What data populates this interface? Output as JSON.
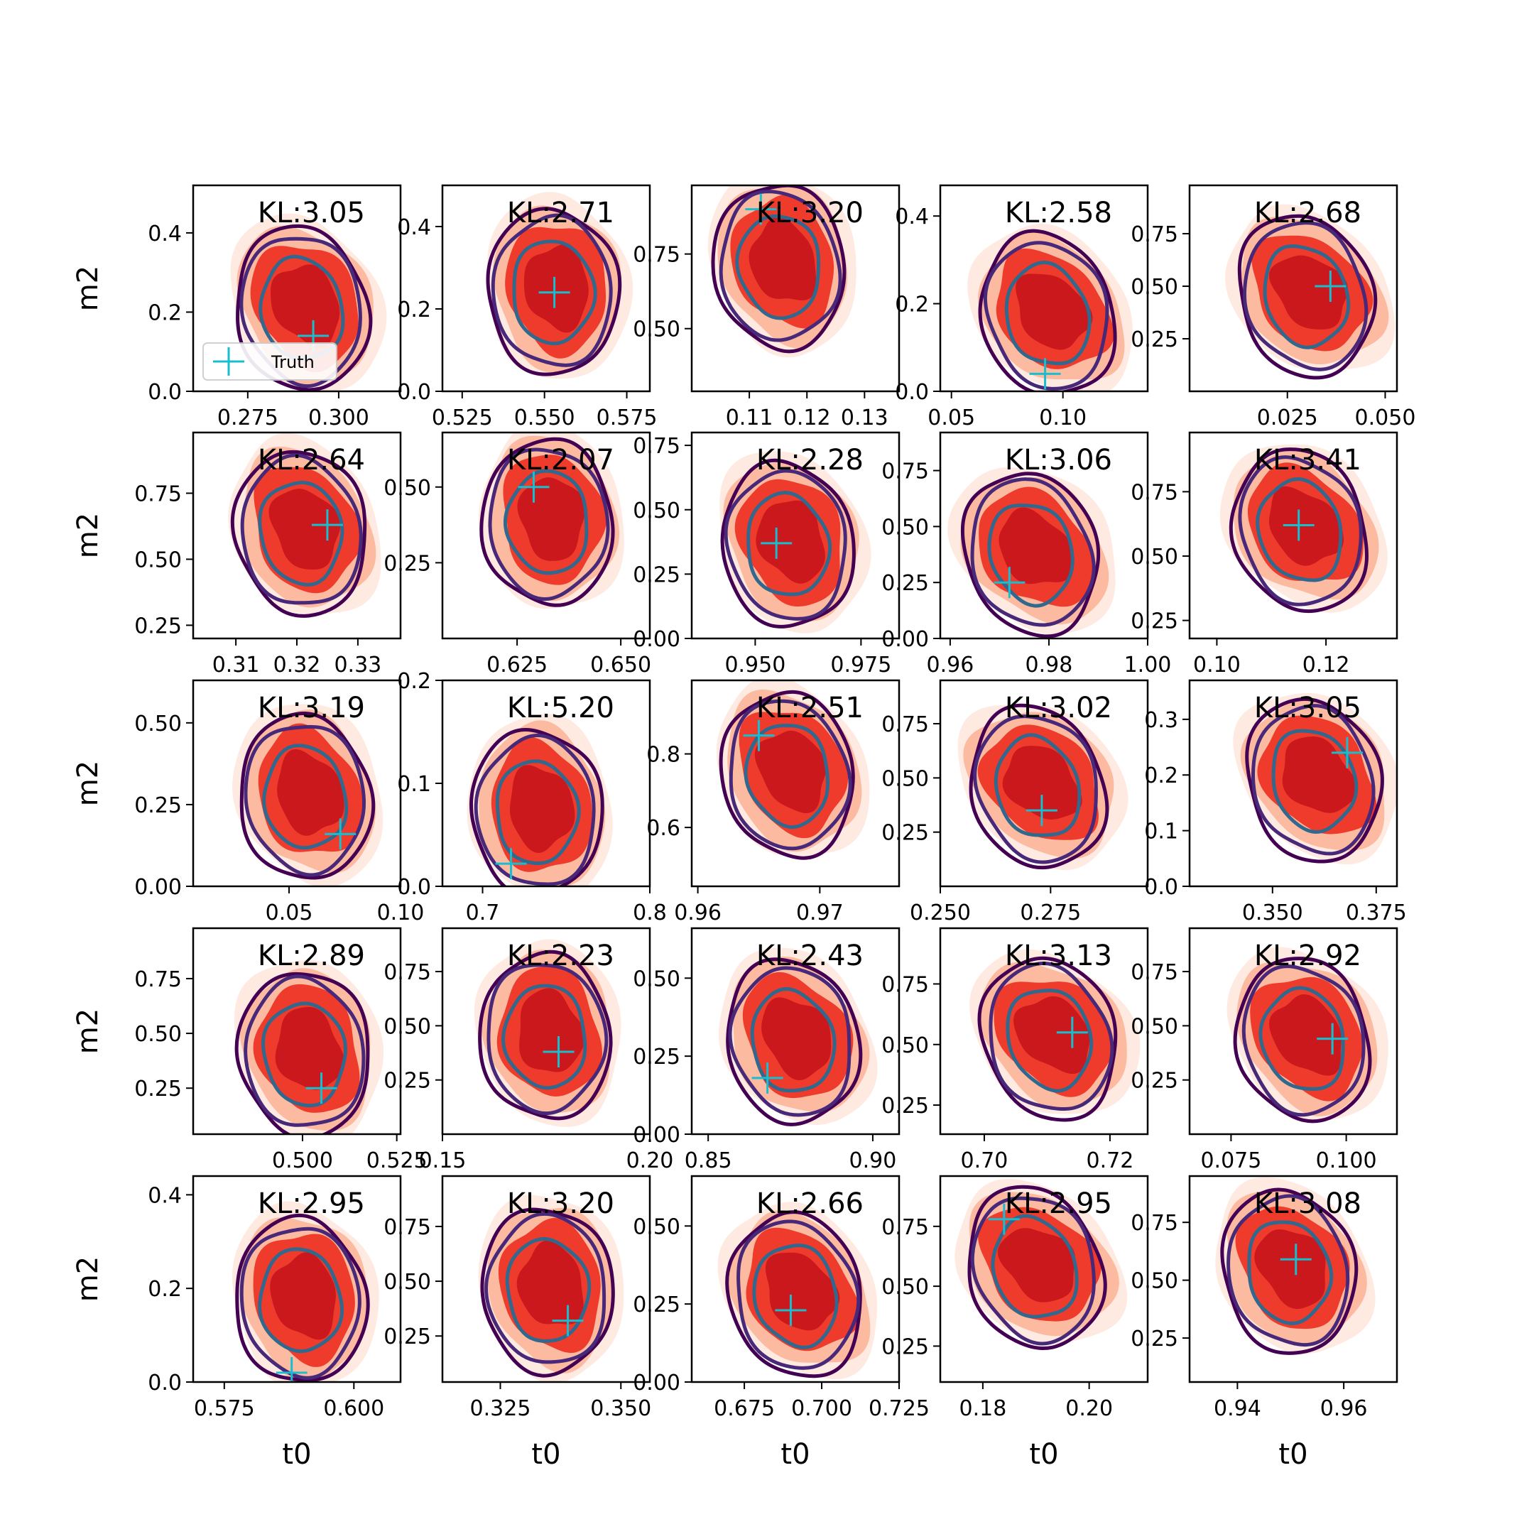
{
  "figure": {
    "truth_marker_color": "#17becf",
    "kde_fill_colors": [
      "#fee5d9",
      "#fcbba1",
      "#ef3b2c",
      "#cb181d"
    ],
    "contour_colors": [
      "#440154",
      "#482878",
      "#31688e"
    ],
    "legend_label": "Truth"
  },
  "chart_data": [
    {
      "type": "kde-contour",
      "kl": "KL:3.05",
      "xticks": [
        "0.275",
        "0.300"
      ],
      "yticks": [
        "0.0",
        "0.2",
        "0.4"
      ],
      "xlim": [
        0.26,
        0.317
      ],
      "ylim": [
        0,
        0.52
      ],
      "truth": [
        0.293,
        0.14
      ],
      "xlabel": "",
      "ylabel": "m2",
      "legend": true
    },
    {
      "type": "kde-contour",
      "kl": "KL:2.71",
      "xticks": [
        "0.525",
        "0.550",
        "0.575"
      ],
      "yticks": [
        "0.0",
        "0.2",
        "0.4"
      ],
      "xlim": [
        0.519,
        0.582
      ],
      "ylim": [
        0,
        0.5
      ],
      "truth": [
        0.553,
        0.24
      ],
      "xlabel": "",
      "ylabel": ""
    },
    {
      "type": "kde-contour",
      "kl": "KL:3.20",
      "xticks": [
        "0.11",
        "0.12",
        "0.13"
      ],
      "yticks": [
        "0.50",
        "0.75"
      ],
      "xlim": [
        0.1,
        0.136
      ],
      "ylim": [
        0.29,
        0.98
      ],
      "truth": [
        0.112,
        0.9
      ],
      "xlabel": "",
      "ylabel": ""
    },
    {
      "type": "kde-contour",
      "kl": "KL:2.58",
      "xticks": [
        "0.05",
        "0.10"
      ],
      "yticks": [
        "0.0",
        "0.2",
        "0.4"
      ],
      "xlim": [
        0.045,
        0.138
      ],
      "ylim": [
        0,
        0.47
      ],
      "truth": [
        0.092,
        0.04
      ],
      "xlabel": "",
      "ylabel": ""
    },
    {
      "type": "kde-contour",
      "kl": "KL:2.68",
      "xticks": [
        "0.025",
        "0.050"
      ],
      "yticks": [
        "0.25",
        "0.50",
        "0.75"
      ],
      "xlim": [
        0.0,
        0.053
      ],
      "ylim": [
        0.0,
        0.98
      ],
      "truth": [
        0.036,
        0.5
      ],
      "xlabel": "",
      "ylabel": ""
    },
    {
      "type": "kde-contour",
      "kl": "KL:2.64",
      "xticks": [
        "0.31",
        "0.32",
        "0.33"
      ],
      "yticks": [
        "0.25",
        "0.50",
        "0.75"
      ],
      "xlim": [
        0.303,
        0.337
      ],
      "ylim": [
        0.2,
        0.98
      ],
      "truth": [
        0.325,
        0.63
      ],
      "xlabel": "",
      "ylabel": "m2"
    },
    {
      "type": "kde-contour",
      "kl": "KL:2.07",
      "xticks": [
        "0.625",
        "0.650"
      ],
      "yticks": [
        "0.25",
        "0.50"
      ],
      "xlim": [
        0.607,
        0.657
      ],
      "ylim": [
        0.0,
        0.68
      ],
      "truth": [
        0.629,
        0.5
      ],
      "xlabel": "",
      "ylabel": ""
    },
    {
      "type": "kde-contour",
      "kl": "KL:2.28",
      "xticks": [
        "0.950",
        "0.975"
      ],
      "yticks": [
        "0.00",
        "0.25",
        "0.50",
        "0.75"
      ],
      "xlim": [
        0.935,
        0.984
      ],
      "ylim": [
        0,
        0.8
      ],
      "truth": [
        0.955,
        0.37
      ],
      "xlabel": "",
      "ylabel": ""
    },
    {
      "type": "kde-contour",
      "kl": "KL:3.06",
      "xticks": [
        "0.96",
        "0.98",
        "1.00"
      ],
      "yticks": [
        "0.00",
        "0.25",
        "0.50",
        "0.75"
      ],
      "xlim": [
        0.958,
        1.0
      ],
      "ylim": [
        0,
        0.92
      ],
      "truth": [
        0.972,
        0.25
      ],
      "xlabel": "",
      "ylabel": ""
    },
    {
      "type": "kde-contour",
      "kl": "KL:3.41",
      "xticks": [
        "0.10",
        "0.12"
      ],
      "yticks": [
        "0.25",
        "0.50",
        "0.75"
      ],
      "xlim": [
        0.095,
        0.133
      ],
      "ylim": [
        0.18,
        0.98
      ],
      "truth": [
        0.115,
        0.62
      ],
      "xlabel": "",
      "ylabel": ""
    },
    {
      "type": "kde-contour",
      "kl": "KL:3.19",
      "xticks": [
        "0.05",
        "0.10"
      ],
      "yticks": [
        "0.00",
        "0.25",
        "0.50"
      ],
      "xlim": [
        0.007,
        0.1
      ],
      "ylim": [
        0,
        0.63
      ],
      "truth": [
        0.073,
        0.16
      ],
      "xlabel": "",
      "ylabel": "m2"
    },
    {
      "type": "kde-contour",
      "kl": "KL:5.20",
      "xticks": [
        "0.7",
        "0.8"
      ],
      "yticks": [
        "0.0",
        "0.1",
        "0.2"
      ],
      "xlim": [
        0.676,
        0.8
      ],
      "ylim": [
        0,
        0.2
      ],
      "truth": [
        0.717,
        0.022
      ],
      "xlabel": "",
      "ylabel": ""
    },
    {
      "type": "kde-contour",
      "kl": "KL:2.51",
      "xticks": [
        "0.96",
        "0.97"
      ],
      "yticks": [
        "0.6",
        "0.8"
      ],
      "xlim": [
        0.9595,
        0.9765
      ],
      "ylim": [
        0.44,
        1.0
      ],
      "truth": [
        0.965,
        0.85
      ],
      "xlabel": "",
      "ylabel": ""
    },
    {
      "type": "kde-contour",
      "kl": "KL:3.02",
      "xticks": [
        "0.250",
        "0.275"
      ],
      "yticks": [
        "0.25",
        "0.50",
        "0.75"
      ],
      "xlim": [
        0.25,
        0.297
      ],
      "ylim": [
        0,
        0.95
      ],
      "truth": [
        0.273,
        0.35
      ],
      "xlabel": "",
      "ylabel": ""
    },
    {
      "type": "kde-contour",
      "kl": "KL:3.05",
      "xticks": [
        "0.350",
        "0.375"
      ],
      "yticks": [
        "0.0",
        "0.1",
        "0.2",
        "0.3"
      ],
      "xlim": [
        0.33,
        0.38
      ],
      "ylim": [
        0,
        0.37
      ],
      "truth": [
        0.368,
        0.24
      ],
      "xlabel": "",
      "ylabel": ""
    },
    {
      "type": "kde-contour",
      "kl": "KL:2.89",
      "xticks": [
        "0.500",
        "0.525"
      ],
      "yticks": [
        "0.25",
        "0.50",
        "0.75"
      ],
      "xlim": [
        0.471,
        0.526
      ],
      "ylim": [
        0.04,
        0.98
      ],
      "truth": [
        0.505,
        0.25
      ],
      "xlabel": "",
      "ylabel": "m2"
    },
    {
      "type": "kde-contour",
      "kl": "KL:2.23",
      "xticks": [
        "0.15",
        "0.20"
      ],
      "yticks": [
        "0.25",
        "0.50",
        "0.75"
      ],
      "xlim": [
        0.15,
        0.2
      ],
      "ylim": [
        0.0,
        0.95
      ],
      "truth": [
        0.178,
        0.38
      ],
      "xlabel": "",
      "ylabel": ""
    },
    {
      "type": "kde-contour",
      "kl": "KL:2.43",
      "xticks": [
        "0.85",
        "0.90"
      ],
      "yticks": [
        "0.00",
        "0.25",
        "0.50"
      ],
      "xlim": [
        0.845,
        0.908
      ],
      "ylim": [
        0,
        0.66
      ],
      "truth": [
        0.868,
        0.18
      ],
      "xlabel": "",
      "ylabel": ""
    },
    {
      "type": "kde-contour",
      "kl": "KL:3.13",
      "xticks": [
        "0.70",
        "0.72"
      ],
      "yticks": [
        "0.25",
        "0.50",
        "0.75"
      ],
      "xlim": [
        0.693,
        0.726
      ],
      "ylim": [
        0.13,
        0.98
      ],
      "truth": [
        0.714,
        0.55
      ],
      "xlabel": "",
      "ylabel": ""
    },
    {
      "type": "kde-contour",
      "kl": "KL:2.92",
      "xticks": [
        "0.075",
        "0.100"
      ],
      "yticks": [
        "0.25",
        "0.50",
        "0.75"
      ],
      "xlim": [
        0.066,
        0.111
      ],
      "ylim": [
        0.0,
        0.95
      ],
      "truth": [
        0.097,
        0.44
      ],
      "xlabel": "",
      "ylabel": ""
    },
    {
      "type": "kde-contour",
      "kl": "KL:2.95",
      "xticks": [
        "0.575",
        "0.600"
      ],
      "yticks": [
        "0.0",
        "0.2",
        "0.4"
      ],
      "xlim": [
        0.569,
        0.609
      ],
      "ylim": [
        0,
        0.44
      ],
      "truth": [
        0.588,
        0.02
      ],
      "xlabel": "t0",
      "ylabel": "m2"
    },
    {
      "type": "kde-contour",
      "kl": "KL:3.20",
      "xticks": [
        "0.325",
        "0.350"
      ],
      "yticks": [
        "0.25",
        "0.50",
        "0.75"
      ],
      "xlim": [
        0.313,
        0.356
      ],
      "ylim": [
        0.04,
        0.98
      ],
      "truth": [
        0.339,
        0.32
      ],
      "xlabel": "t0",
      "ylabel": ""
    },
    {
      "type": "kde-contour",
      "kl": "KL:2.66",
      "xticks": [
        "0.675",
        "0.700",
        "0.725"
      ],
      "yticks": [
        "0.00",
        "0.25",
        "0.50"
      ],
      "xlim": [
        0.658,
        0.725
      ],
      "ylim": [
        0,
        0.66
      ],
      "truth": [
        0.69,
        0.23
      ],
      "xlabel": "t0",
      "ylabel": ""
    },
    {
      "type": "kde-contour",
      "kl": "KL:2.95",
      "xticks": [
        "0.18",
        "0.20"
      ],
      "yticks": [
        "0.25",
        "0.50",
        "0.75"
      ],
      "xlim": [
        0.172,
        0.211
      ],
      "ylim": [
        0.1,
        0.96
      ],
      "truth": [
        0.184,
        0.78
      ],
      "xlabel": "t0",
      "ylabel": ""
    },
    {
      "type": "kde-contour",
      "kl": "KL:3.08",
      "xticks": [
        "0.94",
        "0.96"
      ],
      "yticks": [
        "0.25",
        "0.50",
        "0.75"
      ],
      "xlim": [
        0.931,
        0.97
      ],
      "ylim": [
        0.06,
        0.95
      ],
      "truth": [
        0.951,
        0.59
      ],
      "xlabel": "t0",
      "ylabel": ""
    }
  ]
}
